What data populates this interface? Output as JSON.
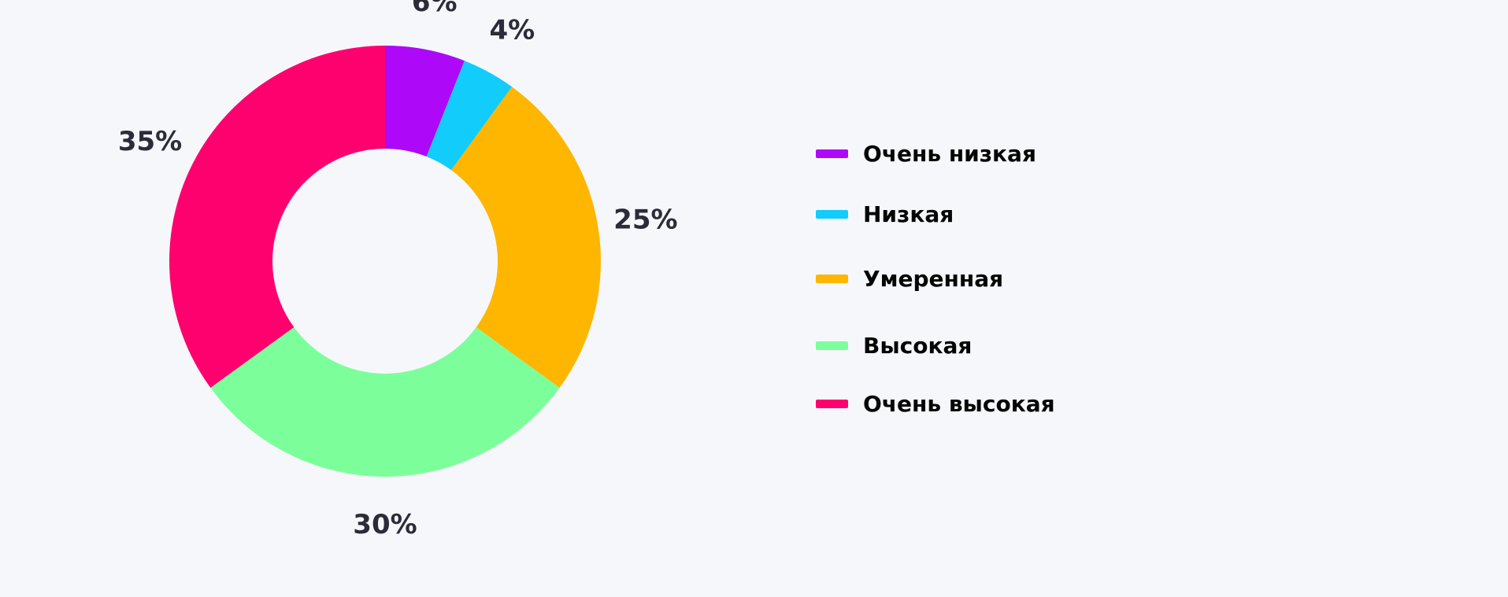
{
  "chart_data": {
    "type": "pie",
    "variant": "donut",
    "title": "",
    "legend_position": "right",
    "slices": [
      {
        "label": "Очень низкая",
        "value": 6,
        "display": "6%",
        "color": "#ae08f8"
      },
      {
        "label": "Низкая",
        "value": 4,
        "display": "4%",
        "color": "#12ccfb"
      },
      {
        "label": "Умеренная",
        "value": 25,
        "display": "25%",
        "color": "#ffb600"
      },
      {
        "label": "Высокая",
        "value": 30,
        "display": "30%",
        "color": "#7cff9b"
      },
      {
        "label": "Очень высокая",
        "value": 35,
        "display": "35%",
        "color": "#ff006f"
      }
    ]
  }
}
